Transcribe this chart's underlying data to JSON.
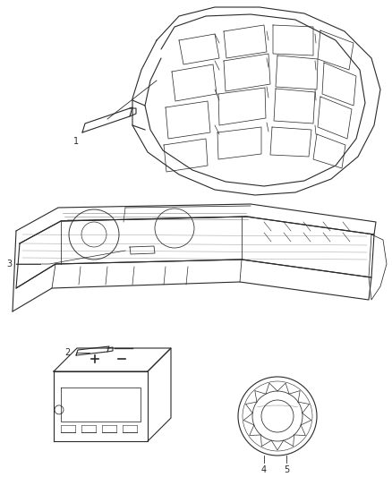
{
  "background_color": "#ffffff",
  "line_color": "#2a2a2a",
  "figure_width": 4.38,
  "figure_height": 5.33,
  "dpi": 100
}
